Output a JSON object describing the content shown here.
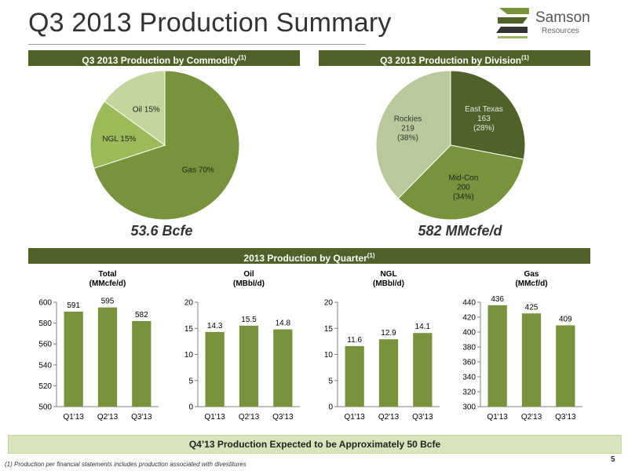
{
  "page": {
    "title": "Q3 2013 Production Summary",
    "logo_text": "Samson",
    "logo_sub": "Resources",
    "page_number": "5",
    "footnote": "(1) Production per financial statements includes production associated with divestitures",
    "expectation": "Q4’13 Production Expected to be Approximately 50 Bcfe"
  },
  "headers": {
    "commodity": "Q3 2013 Production by Commodity",
    "division": "Q3 2013 Production by Division",
    "quarter": "2013 Production by Quarter",
    "note_mark": "(1)"
  },
  "captions": {
    "commodity_total": "53.6 Bcfe",
    "division_total": "582 MMcfe/d"
  },
  "colors": {
    "header_bg": "#4f6228",
    "bar": "#77933c",
    "gas": "#77933c",
    "ngl": "#9bbb59",
    "oil": "#c3d69b",
    "east_texas": "#4f6228",
    "mid_con": "#77933c",
    "rockies": "#b9c99b"
  },
  "chart_data": [
    {
      "type": "pie",
      "slices": [
        {
          "label": "Gas 70%",
          "value": 70
        },
        {
          "label": "NGL 15%",
          "value": 15
        },
        {
          "label": "Oil 15%",
          "value": 15
        }
      ]
    },
    {
      "type": "pie",
      "slices": [
        {
          "label": [
            "East Texas",
            "163",
            "(28%)"
          ],
          "value": 163
        },
        {
          "label": [
            "Mid-Con",
            "200",
            "(34%)"
          ],
          "value": 200
        },
        {
          "label": [
            "Rockies",
            "219",
            "(38%)"
          ],
          "value": 219
        }
      ]
    },
    {
      "type": "bar",
      "title": [
        "Total",
        "(MMcfe/d)"
      ],
      "categories": [
        "Q1'13",
        "Q2'13",
        "Q3'13"
      ],
      "values": [
        591,
        595,
        582
      ],
      "labels": [
        "591",
        "595",
        "582"
      ],
      "ylim": [
        500,
        600
      ],
      "yticks": [
        500,
        520,
        540,
        560,
        580,
        600
      ]
    },
    {
      "type": "bar",
      "title": [
        "Oil",
        "(MBbl/d)"
      ],
      "categories": [
        "Q1'13",
        "Q2'13",
        "Q3'13"
      ],
      "values": [
        14.3,
        15.5,
        14.8
      ],
      "labels": [
        "14.3",
        "15.5",
        "14.8"
      ],
      "ylim": [
        0,
        20
      ],
      "yticks": [
        0,
        5,
        10,
        15,
        20
      ]
    },
    {
      "type": "bar",
      "title": [
        "NGL",
        "(MBbl/d)"
      ],
      "categories": [
        "Q1'13",
        "Q2'13",
        "Q3'13"
      ],
      "values": [
        11.6,
        12.9,
        14.1
      ],
      "labels": [
        "11.6",
        "12.9",
        "14.1"
      ],
      "ylim": [
        0,
        20
      ],
      "yticks": [
        0,
        5,
        10,
        15,
        20
      ]
    },
    {
      "type": "bar",
      "title": [
        "Gas",
        "(MMcf/d)"
      ],
      "categories": [
        "Q1'13",
        "Q2'13",
        "Q3'13"
      ],
      "values": [
        436,
        425,
        409
      ],
      "labels": [
        "436",
        "425",
        "409"
      ],
      "ylim": [
        300,
        440
      ],
      "yticks": [
        300,
        320,
        340,
        360,
        380,
        400,
        420,
        440
      ]
    }
  ]
}
